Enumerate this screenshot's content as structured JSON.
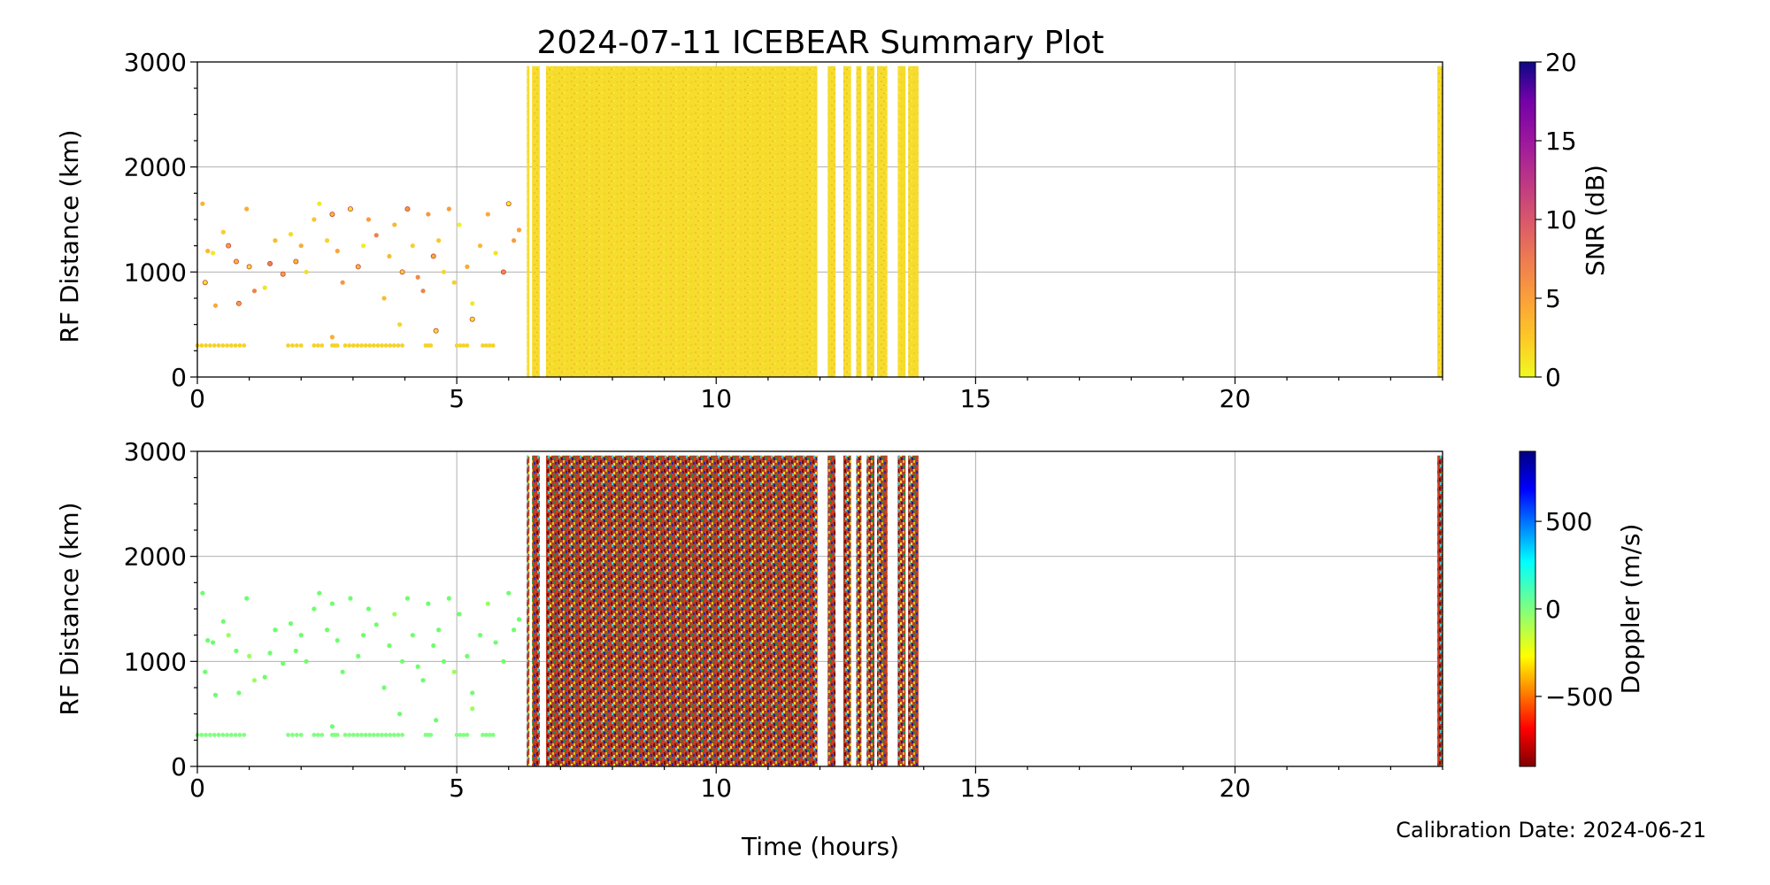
{
  "figure": {
    "title": "2024-07-11 ICEBEAR Summary Plot",
    "xlabel": "Time (hours)",
    "footer": "Calibration Date: 2024-06-21"
  },
  "chart_data": [
    {
      "type": "scatter",
      "ylabel": "RF Distance (km)",
      "xlim": [
        0,
        24
      ],
      "ylim": [
        0,
        3000
      ],
      "xticks": [
        "0",
        "5",
        "10",
        "15",
        "20"
      ],
      "yticks": [
        "0",
        "1000",
        "2000",
        "3000"
      ],
      "grid": true,
      "colorbar": {
        "label": "SNR (dB)",
        "range": [
          0,
          20
        ],
        "ticks": [
          "0",
          "5",
          "10",
          "15",
          "20"
        ],
        "colormap": "plasma_r"
      },
      "sparse_points": [
        [
          0.1,
          1650
        ],
        [
          0.15,
          900
        ],
        [
          0.2,
          1200
        ],
        [
          0.3,
          1180
        ],
        [
          0.35,
          680
        ],
        [
          0.5,
          1380
        ],
        [
          0.6,
          1250
        ],
        [
          0.75,
          1100
        ],
        [
          0.8,
          700
        ],
        [
          0.95,
          1600
        ],
        [
          1.0,
          1050
        ],
        [
          1.1,
          820
        ],
        [
          1.3,
          850
        ],
        [
          1.4,
          1080
        ],
        [
          1.5,
          1300
        ],
        [
          1.65,
          980
        ],
        [
          1.8,
          1360
        ],
        [
          1.9,
          1100
        ],
        [
          2.0,
          1250
        ],
        [
          2.1,
          1000
        ],
        [
          2.25,
          1500
        ],
        [
          2.35,
          1650
        ],
        [
          2.5,
          1300
        ],
        [
          2.6,
          1550
        ],
        [
          2.7,
          1200
        ],
        [
          2.8,
          900
        ],
        [
          2.95,
          1600
        ],
        [
          3.1,
          1050
        ],
        [
          3.2,
          1250
        ],
        [
          3.3,
          1500
        ],
        [
          3.45,
          1350
        ],
        [
          3.6,
          750
        ],
        [
          3.7,
          1150
        ],
        [
          3.8,
          1450
        ],
        [
          3.95,
          1000
        ],
        [
          4.05,
          1600
        ],
        [
          4.15,
          1250
        ],
        [
          4.25,
          950
        ],
        [
          4.35,
          820
        ],
        [
          4.45,
          1550
        ],
        [
          4.55,
          1150
        ],
        [
          4.65,
          1300
        ],
        [
          4.75,
          1000
        ],
        [
          4.85,
          1600
        ],
        [
          4.95,
          900
        ],
        [
          5.05,
          1450
        ],
        [
          5.2,
          1050
        ],
        [
          5.3,
          700
        ],
        [
          5.45,
          1250
        ],
        [
          5.6,
          1550
        ],
        [
          5.75,
          1180
        ],
        [
          5.9,
          1000
        ],
        [
          6.0,
          1650
        ],
        [
          6.1,
          1300
        ],
        [
          6.2,
          1400
        ],
        [
          3.9,
          500
        ],
        [
          4.6,
          440
        ],
        [
          5.3,
          550
        ],
        [
          2.6,
          380
        ]
      ],
      "baseline_segments": [
        [
          0.0,
          0.9,
          300
        ],
        [
          1.75,
          2.0,
          300
        ],
        [
          2.25,
          2.4,
          300
        ],
        [
          2.6,
          2.7,
          300
        ],
        [
          2.85,
          3.95,
          300
        ],
        [
          4.4,
          4.5,
          300
        ],
        [
          5.0,
          5.2,
          300
        ],
        [
          5.5,
          5.7,
          300
        ]
      ],
      "dense_bands": [
        [
          6.35,
          6.4
        ],
        [
          6.45,
          6.6
        ],
        [
          6.72,
          11.95
        ],
        [
          12.15,
          12.3
        ],
        [
          12.45,
          12.6
        ],
        [
          12.7,
          12.8
        ],
        [
          12.9,
          13.05
        ],
        [
          13.1,
          13.3
        ],
        [
          13.5,
          13.65
        ],
        [
          13.7,
          13.9
        ],
        [
          23.9,
          24.0
        ]
      ]
    },
    {
      "type": "scatter",
      "ylabel": "RF Distance (km)",
      "xlim": [
        0,
        24
      ],
      "ylim": [
        0,
        3000
      ],
      "xticks": [
        "0",
        "5",
        "10",
        "15",
        "20"
      ],
      "yticks": [
        "0",
        "1000",
        "2000",
        "3000"
      ],
      "grid": true,
      "colorbar": {
        "label": "Doppler (m/s)",
        "range": [
          -900,
          900
        ],
        "ticks": [
          "500",
          "0",
          "−500"
        ],
        "tick_values": [
          500,
          0,
          -500
        ],
        "colormap": "jet_r"
      },
      "sparse_points": [
        [
          0.1,
          1650
        ],
        [
          0.15,
          900
        ],
        [
          0.2,
          1200
        ],
        [
          0.3,
          1180
        ],
        [
          0.35,
          680
        ],
        [
          0.5,
          1380
        ],
        [
          0.6,
          1250
        ],
        [
          0.75,
          1100
        ],
        [
          0.8,
          700
        ],
        [
          0.95,
          1600
        ],
        [
          1.0,
          1050
        ],
        [
          1.1,
          820
        ],
        [
          1.3,
          850
        ],
        [
          1.4,
          1080
        ],
        [
          1.5,
          1300
        ],
        [
          1.65,
          980
        ],
        [
          1.8,
          1360
        ],
        [
          1.9,
          1100
        ],
        [
          2.0,
          1250
        ],
        [
          2.1,
          1000
        ],
        [
          2.25,
          1500
        ],
        [
          2.35,
          1650
        ],
        [
          2.5,
          1300
        ],
        [
          2.6,
          1550
        ],
        [
          2.7,
          1200
        ],
        [
          2.8,
          900
        ],
        [
          2.95,
          1600
        ],
        [
          3.1,
          1050
        ],
        [
          3.2,
          1250
        ],
        [
          3.3,
          1500
        ],
        [
          3.45,
          1350
        ],
        [
          3.6,
          750
        ],
        [
          3.7,
          1150
        ],
        [
          3.8,
          1450
        ],
        [
          3.95,
          1000
        ],
        [
          4.05,
          1600
        ],
        [
          4.15,
          1250
        ],
        [
          4.25,
          950
        ],
        [
          4.35,
          820
        ],
        [
          4.45,
          1550
        ],
        [
          4.55,
          1150
        ],
        [
          4.65,
          1300
        ],
        [
          4.75,
          1000
        ],
        [
          4.85,
          1600
        ],
        [
          4.95,
          900
        ],
        [
          5.05,
          1450
        ],
        [
          5.2,
          1050
        ],
        [
          5.3,
          700
        ],
        [
          5.45,
          1250
        ],
        [
          5.6,
          1550
        ],
        [
          5.75,
          1180
        ],
        [
          5.9,
          1000
        ],
        [
          6.0,
          1650
        ],
        [
          6.1,
          1300
        ],
        [
          6.2,
          1400
        ],
        [
          3.9,
          500
        ],
        [
          4.6,
          440
        ],
        [
          5.3,
          550
        ],
        [
          2.6,
          380
        ]
      ],
      "baseline_segments": [
        [
          0.0,
          0.9,
          300
        ],
        [
          1.75,
          2.0,
          300
        ],
        [
          2.25,
          2.4,
          300
        ],
        [
          2.6,
          2.7,
          300
        ],
        [
          2.85,
          3.95,
          300
        ],
        [
          4.4,
          4.5,
          300
        ],
        [
          5.0,
          5.2,
          300
        ],
        [
          5.5,
          5.7,
          300
        ]
      ],
      "dense_bands": [
        [
          6.35,
          6.4
        ],
        [
          6.45,
          6.6
        ],
        [
          6.72,
          11.95
        ],
        [
          12.15,
          12.3
        ],
        [
          12.45,
          12.6
        ],
        [
          12.7,
          12.8
        ],
        [
          12.9,
          13.05
        ],
        [
          13.1,
          13.3
        ],
        [
          13.5,
          13.65
        ],
        [
          13.7,
          13.9
        ],
        [
          23.9,
          24.0
        ]
      ]
    }
  ]
}
